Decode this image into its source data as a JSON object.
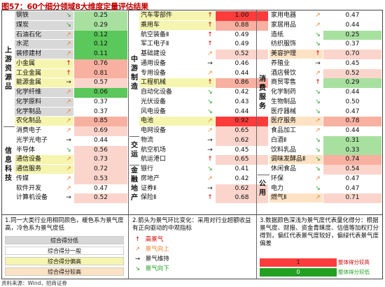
{
  "title": "图57：60个细分领域8大维度定量评估结果",
  "colors": {
    "v_red": "#ff3b3b",
    "v_salmon": "#f8b0a0",
    "v_pink": "#fbd5cc",
    "v_lgreen": "#a8e0a0",
    "v_green": "#5ac85a",
    "v_white": "#ffffff",
    "row_grey": "#d8d8d8",
    "row_yellow": "#f5f5b0",
    "row_orange": "#fde2c4"
  },
  "sections": {
    "col1": [
      {
        "label": "上游资源品",
        "rows": [
          {
            "name": "钢铁",
            "arrow": "↘",
            "dir": "dn",
            "value": "0.25",
            "bg": "v_lgreen",
            "rowbg": "row_grey"
          },
          {
            "name": "煤炭",
            "arrow": "↘",
            "dir": "dn",
            "value": "0.29",
            "bg": "v_lgreen",
            "rowbg": "row_grey"
          },
          {
            "name": "石油石化",
            "arrow": "↗",
            "dir": "upr",
            "value": "0.12",
            "bg": "v_green",
            "rowbg": "row_grey"
          },
          {
            "name": "水泥",
            "arrow": "↗",
            "dir": "upr",
            "value": "0.12",
            "bg": "v_green",
            "rowbg": "row_grey"
          },
          {
            "name": "装修建材",
            "arrow": "↗",
            "dir": "upr",
            "value": "0.11",
            "bg": "v_green",
            "rowbg": "row_grey"
          },
          {
            "name": "小金属",
            "arrow": "↑",
            "dir": "up",
            "value": "0.76",
            "bg": "v_salmon",
            "rowbg": "row_yellow"
          },
          {
            "name": "工业金属",
            "arrow": "↑",
            "dir": "up",
            "value": "0.81",
            "bg": "v_salmon",
            "rowbg": "row_yellow"
          },
          {
            "name": "能源金属",
            "arrow": "→",
            "dir": "flat",
            "value": "0.57",
            "bg": "v_pink",
            "rowbg": "row_yellow"
          },
          {
            "name": "化学纤维",
            "arrow": "↗",
            "dir": "upr",
            "value": "0.06",
            "bg": "v_green",
            "rowbg": "row_grey"
          },
          {
            "name": "化学原料",
            "arrow": "↗",
            "dir": "upr",
            "value": "0.37",
            "bg": "v_white",
            "rowbg": "row_grey"
          },
          {
            "name": "化学制品",
            "arrow": "↗",
            "dir": "upr",
            "value": "0.37",
            "bg": "v_white",
            "rowbg": "row_grey"
          },
          {
            "name": "农化制品",
            "arrow": "↗",
            "dir": "upr",
            "value": "0.85",
            "bg": "v_salmon",
            "rowbg": "row_yellow"
          }
        ]
      },
      {
        "label": "信息科技",
        "rows": [
          {
            "name": "消费电子",
            "arrow": "↗",
            "dir": "upr",
            "value": "0.69",
            "bg": "v_pink",
            "rowbg": "row_white"
          },
          {
            "name": "光学光电子",
            "arrow": "→",
            "dir": "flat",
            "value": "0.44",
            "bg": "v_white",
            "rowbg": "row_white"
          },
          {
            "name": "半导体",
            "arrow": "↘",
            "dir": "dn",
            "value": "0.56",
            "bg": "v_pink",
            "rowbg": "row_white"
          },
          {
            "name": "通信设备",
            "arrow": "↗",
            "dir": "upr",
            "value": "0.73",
            "bg": "v_pink",
            "rowbg": "row_yellow"
          },
          {
            "name": "通信服务",
            "arrow": "↗",
            "dir": "upr",
            "value": "0.72",
            "bg": "v_pink",
            "rowbg": "row_yellow"
          },
          {
            "name": "传媒",
            "arrow": "↗",
            "dir": "upr",
            "value": "0.53",
            "bg": "v_pink",
            "rowbg": "row_white"
          },
          {
            "name": "软件开发",
            "arrow": "↗",
            "dir": "upr",
            "value": "0.47",
            "bg": "v_white",
            "rowbg": "row_white"
          },
          {
            "name": "计算机设备",
            "arrow": "→",
            "dir": "flat",
            "value": "0.52",
            "bg": "v_pink",
            "rowbg": "row_white"
          }
        ]
      }
    ],
    "col2": [
      {
        "label": "中游制造",
        "rows": [
          {
            "name": "汽车零部件",
            "arrow": "↑",
            "dir": "up",
            "value": "1.00",
            "bg": "v_red",
            "rowbg": "row_yellow"
          },
          {
            "name": "乘用车",
            "arrow": "↑",
            "dir": "up",
            "value": "0.88",
            "bg": "v_salmon",
            "rowbg": "row_yellow"
          },
          {
            "name": "航空装备Ⅱ",
            "arrow": "↑",
            "dir": "up",
            "value": "0.49",
            "bg": "v_white",
            "rowbg": "row_white"
          },
          {
            "name": "军工电子Ⅱ",
            "arrow": "↑",
            "dir": "up",
            "value": "0.49",
            "bg": "v_white",
            "rowbg": "row_white"
          },
          {
            "name": "基础建设",
            "arrow": "↗",
            "dir": "upr",
            "value": "0.52",
            "bg": "v_pink",
            "rowbg": "row_white"
          },
          {
            "name": "通用设备",
            "arrow": "→",
            "dir": "flat",
            "value": "0.46",
            "bg": "v_white",
            "rowbg": "row_white"
          },
          {
            "name": "专用设备",
            "arrow": "↗",
            "dir": "upr",
            "value": "0.44",
            "bg": "v_white",
            "rowbg": "row_white"
          },
          {
            "name": "工程机械",
            "arrow": "↑",
            "dir": "up",
            "value": "0.86",
            "bg": "v_salmon",
            "rowbg": "row_yellow"
          },
          {
            "name": "自动化设备",
            "arrow": "↘",
            "dir": "dn",
            "value": "0.42",
            "bg": "v_white",
            "rowbg": "row_white"
          },
          {
            "name": "光伏设备",
            "arrow": "↘",
            "dir": "dn",
            "value": "0.43",
            "bg": "v_white",
            "rowbg": "row_white"
          },
          {
            "name": "风电设备",
            "arrow": "↘",
            "dir": "dn",
            "value": "0.44",
            "bg": "v_white",
            "rowbg": "row_white"
          },
          {
            "name": "电池",
            "arrow": "↗",
            "dir": "upr",
            "value": "0.92",
            "bg": "v_red",
            "rowbg": "row_yellow"
          },
          {
            "name": "电网设备",
            "arrow": "↗",
            "dir": "upr",
            "value": "0.65",
            "bg": "v_pink",
            "rowbg": "row_white"
          }
        ]
      },
      {
        "label": "交运",
        "rows": [
          {
            "name": "物流",
            "arrow": "→",
            "dir": "flat",
            "value": "0.62",
            "bg": "v_pink",
            "rowbg": "row_white"
          },
          {
            "name": "航空机场",
            "arrow": "→",
            "dir": "flat",
            "value": "0.45",
            "bg": "v_white",
            "rowbg": "row_white"
          },
          {
            "name": "航运港口",
            "arrow": "↑",
            "dir": "up",
            "value": "0.65",
            "bg": "v_pink",
            "rowbg": "row_white"
          }
        ]
      },
      {
        "label": "金融地产",
        "rows": [
          {
            "name": "银行",
            "arrow": "↘",
            "dir": "dn",
            "value": "0.41",
            "bg": "v_white",
            "rowbg": "row_white"
          },
          {
            "name": "房地产",
            "arrow": "↗",
            "dir": "upr",
            "value": "0.42",
            "bg": "v_white",
            "rowbg": "row_white"
          },
          {
            "name": "证券Ⅱ",
            "arrow": "→",
            "dir": "flat",
            "value": "0.62",
            "bg": "v_pink",
            "rowbg": "row_white"
          },
          {
            "name": "保险Ⅱ",
            "arrow": "↑",
            "dir": "up",
            "value": "0.68",
            "bg": "v_pink",
            "rowbg": "row_white"
          }
        ]
      }
    ],
    "col3": [
      {
        "label": "消费服务",
        "rows": [
          {
            "name": "家用电器",
            "arrow": "↗",
            "dir": "upr",
            "value": "0.47",
            "bg": "v_white",
            "rowbg": "row_white"
          },
          {
            "name": "家居用品",
            "arrow": "↗",
            "dir": "upr",
            "value": "0.44",
            "bg": "v_white",
            "rowbg": "row_white"
          },
          {
            "name": "造纸",
            "arrow": "↘",
            "dir": "dn",
            "value": "0.25",
            "bg": "v_lgreen",
            "rowbg": "row_white"
          },
          {
            "name": "纺织服饰",
            "arrow": "↘",
            "dir": "dn",
            "value": "0.37",
            "bg": "v_white",
            "rowbg": "row_white"
          },
          {
            "name": "美容护理",
            "arrow": "↑",
            "dir": "up",
            "value": "0.70",
            "bg": "v_pink",
            "rowbg": "row_orange"
          },
          {
            "name": "养殖业",
            "arrow": "→",
            "dir": "flat",
            "value": "0.45",
            "bg": "v_white",
            "rowbg": "row_white"
          },
          {
            "name": "酒店餐饮",
            "arrow": "↗",
            "dir": "upr",
            "value": "0.52",
            "bg": "v_pink",
            "rowbg": "row_white"
          },
          {
            "name": "商贸零售",
            "arrow": "↑",
            "dir": "up",
            "value": "0.29",
            "bg": "v_lgreen",
            "rowbg": "row_white"
          },
          {
            "name": "化学制药",
            "arrow": "↘",
            "dir": "dn",
            "value": "0.44",
            "bg": "v_white",
            "rowbg": "row_white"
          },
          {
            "name": "生物制品",
            "arrow": "↘",
            "dir": "dn",
            "value": "0.50",
            "bg": "v_white",
            "rowbg": "row_white"
          },
          {
            "name": "医疗器械",
            "arrow": "↘",
            "dir": "dn",
            "value": "0.47",
            "bg": "v_white",
            "rowbg": "row_white"
          },
          {
            "name": "医疗服务",
            "arrow": "↗",
            "dir": "upr",
            "value": "0.78",
            "bg": "v_salmon",
            "rowbg": "row_orange"
          },
          {
            "name": "食品加工",
            "arrow": "↗",
            "dir": "upr",
            "value": "0.44",
            "bg": "v_white",
            "rowbg": "row_white"
          },
          {
            "name": "白酒Ⅱ",
            "arrow": "↘",
            "dir": "dn",
            "value": "0.31",
            "bg": "v_lgreen",
            "rowbg": "row_white"
          },
          {
            "name": "饮料乳品",
            "arrow": "↘",
            "dir": "dn",
            "value": "0.33",
            "bg": "v_lgreen",
            "rowbg": "row_white"
          },
          {
            "name": "调味发酵品Ⅱ",
            "arrow": "↘",
            "dir": "dn",
            "value": "0.74",
            "bg": "v_salmon",
            "rowbg": "row_orange"
          },
          {
            "name": "休闲食品",
            "arrow": "↘",
            "dir": "dn",
            "value": "0.54",
            "bg": "v_pink",
            "rowbg": "row_white"
          }
        ]
      },
      {
        "label": "公用",
        "rows": [
          {
            "name": "环保",
            "arrow": "↗",
            "dir": "upr",
            "value": "0.47",
            "bg": "v_white",
            "rowbg": "row_white"
          },
          {
            "name": "电力",
            "arrow": "↘",
            "dir": "dn",
            "value": "0.47",
            "bg": "v_white",
            "rowbg": "row_white"
          },
          {
            "name": "燃气Ⅱ",
            "arrow": "↗",
            "dir": "upr",
            "value": "0.71",
            "bg": "v_pink",
            "rowbg": "row_orange"
          }
        ]
      }
    ]
  },
  "notes": {
    "n1": "1.同一大类行业用相同颜色，暖色系为景气度高，冷色系为景气度低",
    "n1_legend": [
      "综合得分低",
      "综合得分一般",
      "综合得分偏高",
      "综合得分较高"
    ],
    "n2": "2.箭头为景气环比变化：采用对行业超额收益有正向驱动的中观指标",
    "n2_legend": [
      {
        "arrow": "↑",
        "dir": "up",
        "label": "高景气"
      },
      {
        "arrow": "↗",
        "dir": "upr",
        "label": "景气向上"
      },
      {
        "arrow": "→",
        "dir": "flat",
        "label": "景气维持"
      },
      {
        "arrow": "↘",
        "dir": "dn",
        "label": "景气向下"
      }
    ],
    "n3": "3.数据颜色深浅为景气度代表量化得分：根据景气度、财报、资金青睐度、估值等加权打分得到，偏红代表景气度较好，偏绿代表景气度偏差",
    "n3_legend": [
      {
        "value": "1",
        "label": "整体得分较高"
      },
      {
        "value": "0",
        "label": "整体得分较低"
      }
    ]
  },
  "source": "资料来源：Wind，招商证券"
}
